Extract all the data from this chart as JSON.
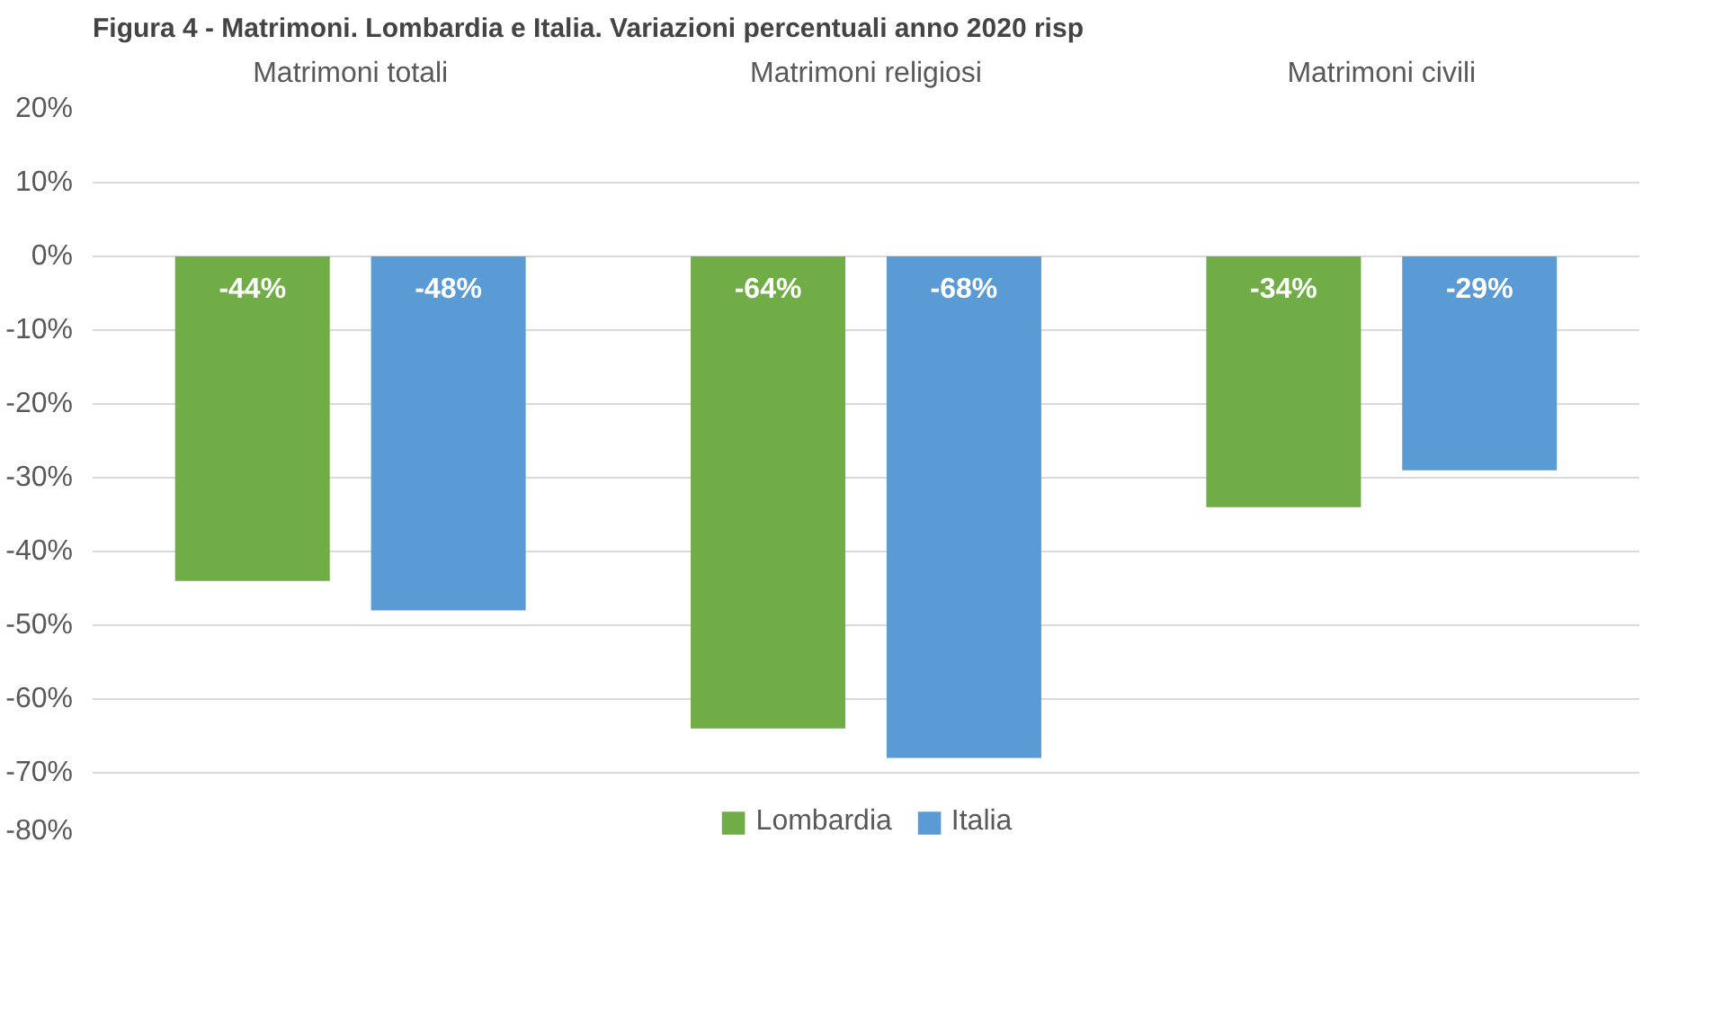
{
  "chart_data": {
    "type": "bar",
    "title": "Figura 4 - Matrimoni. Lombardia e Italia. Variazioni percentuali anno 2020 risp",
    "categories": [
      "Matrimoni totali",
      "Matrimoni religiosi",
      "Matrimoni civili"
    ],
    "series": [
      {
        "name": "Lombardia",
        "color": "#70ad47",
        "values": [
          -44,
          -64,
          -34
        ],
        "value_labels": [
          "-44%",
          "-64%",
          "-34%"
        ]
      },
      {
        "name": "Italia",
        "color": "#5b9bd5",
        "values": [
          -48,
          -68,
          -29
        ],
        "value_labels": [
          "-48%",
          "-68%",
          "-29%"
        ]
      }
    ],
    "ylim": [
      -80,
      20
    ],
    "yticks": [
      {
        "value": 20,
        "label": "20%"
      },
      {
        "value": 10,
        "label": "10%"
      },
      {
        "value": 0,
        "label": "0%"
      },
      {
        "value": -10,
        "label": "-10%"
      },
      {
        "value": -20,
        "label": "-20%"
      },
      {
        "value": -30,
        "label": "-30%"
      },
      {
        "value": -40,
        "label": "-40%"
      },
      {
        "value": -50,
        "label": "-50%"
      },
      {
        "value": -60,
        "label": "-60%"
      },
      {
        "value": -70,
        "label": "-70%"
      },
      {
        "value": -80,
        "label": "-80%"
      }
    ],
    "grid": "y",
    "legend": "bottom"
  }
}
